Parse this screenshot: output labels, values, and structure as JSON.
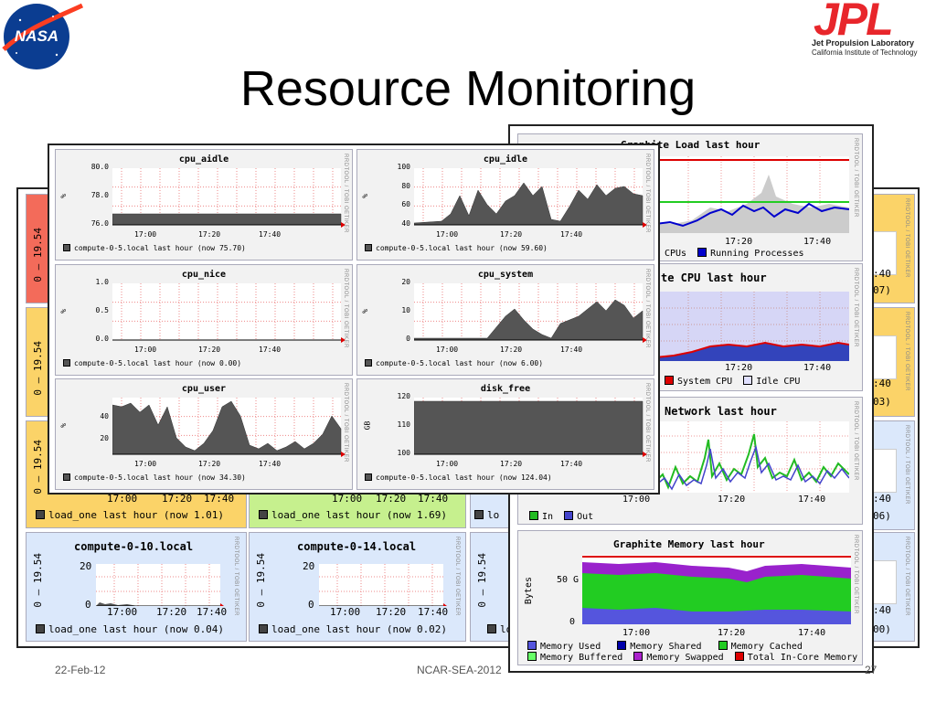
{
  "slide": {
    "title": "Resource Monitoring",
    "footer_left": "22-Feb-12",
    "footer_center": "NCAR-SEA-2012",
    "footer_right": "27"
  },
  "logos": {
    "nasa": "NASA",
    "jpl": "JPL",
    "jpl_line1": "Jet Propulsion Laboratory",
    "jpl_line2": "California Institute of Technology"
  },
  "watermark": "RRDTOOL / TOBI OETIKER",
  "back_grid": {
    "range_label": "0 – 19.54",
    "times": [
      "17:00",
      "17:20",
      "17:40"
    ],
    "legend_left": [
      "load_one last hour (now 1.01)",
      "load_one last hour (now 1.69)"
    ],
    "bottom_nodes": [
      {
        "name": "compute-0-10.local",
        "legend": "load_one last hour (now 0.04)",
        "ticks": [
          "20",
          "0"
        ]
      },
      {
        "name": "compute-0-14.local",
        "legend": "load_one last hour (now 0.02)",
        "ticks": [
          "20",
          "0"
        ]
      }
    ],
    "partial_legend": "lo",
    "right_fragments": [
      ":40",
      "07)",
      ":40",
      "03)",
      ":40",
      "06)",
      ":40",
      "00)"
    ]
  },
  "graphite": {
    "charts": [
      {
        "title": "Graphite Load last hour",
        "times": [
          "17:20",
          "17:40"
        ],
        "legend": [
          "CPUs",
          "Running Processes"
        ],
        "legend_colors": [
          "#0000cc",
          "#0000cc"
        ]
      },
      {
        "title": "te CPU last hour",
        "times": [
          "17:20",
          "17:40"
        ],
        "legend": [
          "System CPU",
          "Idle CPU"
        ],
        "legend_colors": [
          "#cc0000",
          "#e0e0ff"
        ]
      },
      {
        "title": "Network last hour",
        "times": [
          "17:00",
          "17:20",
          "17:40"
        ],
        "legend": [
          "In",
          "Out"
        ],
        "legend_colors": [
          "#22bb22",
          "#4444cc"
        ]
      },
      {
        "title": "Graphite Memory last hour",
        "times": [
          "17:00",
          "17:20",
          "17:40"
        ],
        "ylabel": "Bytes",
        "ticks": [
          "50 G",
          "0"
        ],
        "legend_row1": [
          "Memory Used",
          "Memory Shared",
          "Memory Cached"
        ],
        "legend_row1_colors": [
          "#5555dd",
          "#0000aa",
          "#22cc22"
        ],
        "legend_row2": [
          "Memory Buffered",
          "Memory Swapped",
          "Total In-Core Memory"
        ],
        "legend_row2_colors": [
          "#66ff66",
          "#aa22cc",
          "#dd0000"
        ]
      }
    ]
  },
  "cpu_panels": [
    {
      "title": "cpu_aidle",
      "ticks": [
        "80.0",
        "78.0",
        "76.0"
      ],
      "unit": "%",
      "times": [
        "17:00",
        "17:20",
        "17:40"
      ],
      "legend": "compute-0-5.local last hour (now 75.70)"
    },
    {
      "title": "cpu_idle",
      "ticks": [
        "100",
        "80",
        "60",
        "40"
      ],
      "unit": "%",
      "times": [
        "17:00",
        "17:20",
        "17:40"
      ],
      "legend": "compute-0-5.local last hour (now 59.60)"
    },
    {
      "title": "cpu_nice",
      "ticks": [
        "1.0",
        "0.5",
        "0.0"
      ],
      "unit": "%",
      "times": [
        "17:00",
        "17:20",
        "17:40"
      ],
      "legend": "compute-0-5.local last hour (now 0.00)"
    },
    {
      "title": "cpu_system",
      "ticks": [
        "20",
        "10",
        "0"
      ],
      "unit": "%",
      "times": [
        "17:00",
        "17:20",
        "17:40"
      ],
      "legend": "compute-0-5.local last hour (now 6.00)"
    },
    {
      "title": "cpu_user",
      "ticks": [
        "40",
        "20"
      ],
      "unit": "%",
      "times": [
        "17:00",
        "17:20",
        "17:40"
      ],
      "legend": "compute-0-5.local last hour (now 34.30)"
    },
    {
      "title": "disk_free",
      "ticks": [
        "120",
        "110",
        "100"
      ],
      "unit": "GB",
      "times": [
        "17:00",
        "17:20",
        "17:40"
      ],
      "legend": "compute-0-5.local last hour (now 124.04)"
    }
  ]
}
